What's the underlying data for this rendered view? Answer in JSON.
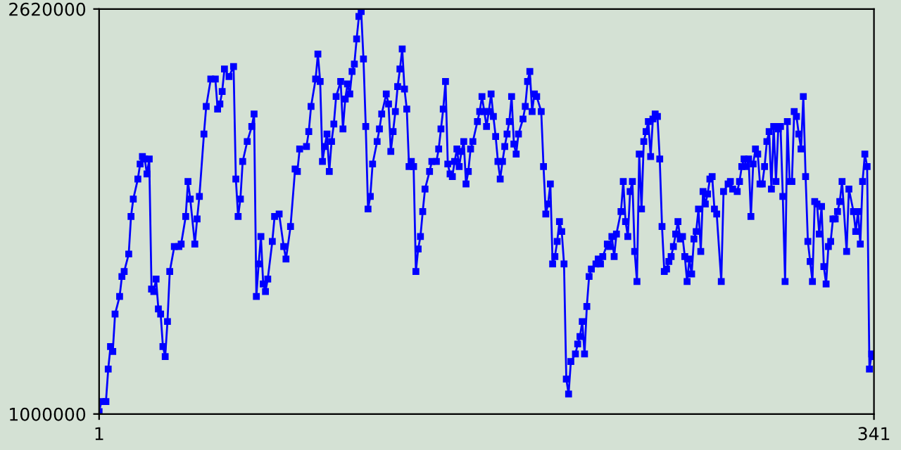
{
  "chart_data": {
    "type": "line",
    "marker": "square",
    "line_style": "solid",
    "grid": false,
    "xlim": [
      1,
      341
    ],
    "xticks": [
      1,
      341
    ],
    "ylim": [
      1000000,
      2620000
    ],
    "yticks": [
      1000000,
      2620000
    ],
    "series": [
      {
        "color": "#0000ff",
        "x": [
          1,
          2,
          4,
          5,
          6,
          7,
          8,
          10,
          11,
          12,
          14,
          15,
          16,
          18,
          19,
          20,
          21,
          22,
          23,
          24,
          25,
          26,
          27,
          28,
          29,
          30,
          31,
          32,
          34,
          36,
          37,
          39,
          40,
          41,
          43,
          44,
          45,
          47,
          48,
          50,
          52,
          53,
          54,
          55,
          56,
          58,
          60,
          61,
          62,
          63,
          64,
          66,
          68,
          69,
          70,
          71,
          72,
          73,
          74,
          75,
          77,
          78,
          80,
          82,
          83,
          85,
          87,
          88,
          89,
          92,
          93,
          94,
          96,
          97,
          98,
          99,
          100,
          101,
          102,
          103,
          104,
          105,
          107,
          108,
          109,
          110,
          111,
          112,
          113,
          114,
          115,
          116,
          117,
          118,
          119,
          120,
          121,
          123,
          124,
          125,
          127,
          128,
          129,
          130,
          131,
          132,
          133,
          134,
          135,
          136,
          137,
          138,
          139,
          140,
          141,
          142,
          143,
          144,
          146,
          147,
          149,
          150,
          151,
          152,
          153,
          154,
          155,
          156,
          157,
          158,
          159,
          160,
          161,
          162,
          163,
          164,
          165,
          167,
          168,
          169,
          170,
          171,
          172,
          173,
          174,
          175,
          176,
          177,
          178,
          179,
          180,
          181,
          182,
          183,
          184,
          185,
          187,
          188,
          189,
          190,
          191,
          192,
          193,
          195,
          196,
          197,
          198,
          199,
          200,
          201,
          202,
          203,
          204,
          205,
          206,
          207,
          208,
          210,
          211,
          212,
          213,
          214,
          215,
          216,
          217,
          219,
          220,
          221,
          222,
          224,
          225,
          226,
          227,
          228,
          230,
          231,
          232,
          233,
          234,
          235,
          236,
          237,
          238,
          239,
          240,
          241,
          242,
          243,
          244,
          245,
          246,
          247,
          248,
          249,
          250,
          251,
          252,
          253,
          254,
          255,
          256,
          257,
          258,
          259,
          260,
          261,
          262,
          263,
          264,
          265,
          266,
          267,
          268,
          269,
          270,
          271,
          272,
          274,
          275,
          277,
          278,
          279,
          281,
          282,
          283,
          284,
          285,
          286,
          287,
          288,
          289,
          290,
          291,
          292,
          293,
          294,
          295,
          296,
          297,
          298,
          299,
          300,
          301,
          302,
          303,
          304,
          305,
          306,
          307,
          308,
          309,
          310,
          311,
          312,
          313,
          314,
          315,
          316,
          317,
          318,
          319,
          320,
          321,
          322,
          323,
          324,
          325,
          326,
          327,
          329,
          330,
          332,
          333,
          334,
          335,
          336,
          337,
          338,
          339,
          340,
          341
        ],
        "values": [
          1010000,
          1050000,
          1050000,
          1180000,
          1270000,
          1250000,
          1400000,
          1470000,
          1550000,
          1570000,
          1640000,
          1790000,
          1860000,
          1940000,
          2000000,
          2030000,
          2020000,
          1960000,
          2020000,
          1500000,
          1490000,
          1540000,
          1420000,
          1400000,
          1270000,
          1230000,
          1370000,
          1570000,
          1670000,
          1670000,
          1680000,
          1790000,
          1930000,
          1860000,
          1680000,
          1780000,
          1870000,
          2120000,
          2230000,
          2340000,
          2340000,
          2220000,
          2240000,
          2290000,
          2380000,
          2350000,
          2390000,
          1940000,
          1790000,
          1860000,
          2010000,
          2090000,
          2150000,
          2200000,
          1470000,
          1600000,
          1710000,
          1520000,
          1490000,
          1540000,
          1690000,
          1790000,
          1800000,
          1670000,
          1620000,
          1750000,
          1980000,
          1970000,
          2060000,
          2070000,
          2130000,
          2230000,
          2340000,
          2440000,
          2330000,
          2010000,
          2070000,
          2120000,
          1970000,
          2090000,
          2160000,
          2270000,
          2330000,
          2140000,
          2260000,
          2320000,
          2280000,
          2370000,
          2400000,
          2500000,
          2590000,
          2610000,
          2420000,
          2150000,
          1820000,
          1870000,
          2000000,
          2090000,
          2140000,
          2200000,
          2280000,
          2240000,
          2050000,
          2130000,
          2210000,
          2310000,
          2380000,
          2460000,
          2300000,
          2220000,
          1990000,
          2010000,
          1990000,
          1570000,
          1660000,
          1710000,
          1810000,
          1900000,
          1970000,
          2010000,
          2010000,
          2060000,
          2140000,
          2220000,
          2330000,
          2000000,
          1960000,
          1950000,
          2010000,
          2060000,
          1990000,
          2050000,
          2090000,
          1920000,
          1970000,
          2060000,
          2090000,
          2170000,
          2210000,
          2270000,
          2210000,
          2150000,
          2210000,
          2280000,
          2190000,
          2110000,
          2010000,
          1940000,
          2010000,
          2070000,
          2120000,
          2170000,
          2270000,
          2080000,
          2040000,
          2120000,
          2180000,
          2230000,
          2330000,
          2370000,
          2210000,
          2280000,
          2270000,
          2210000,
          1990000,
          1800000,
          1840000,
          1920000,
          1600000,
          1630000,
          1690000,
          1770000,
          1730000,
          1600000,
          1140000,
          1080000,
          1210000,
          1240000,
          1280000,
          1310000,
          1370000,
          1240000,
          1430000,
          1550000,
          1580000,
          1600000,
          1620000,
          1600000,
          1630000,
          1680000,
          1670000,
          1710000,
          1630000,
          1720000,
          1810000,
          1930000,
          1770000,
          1710000,
          1890000,
          1930000,
          1650000,
          1530000,
          2040000,
          1820000,
          2090000,
          2130000,
          2170000,
          2030000,
          2180000,
          2200000,
          2190000,
          2020000,
          1750000,
          1570000,
          1580000,
          1610000,
          1630000,
          1670000,
          1720000,
          1770000,
          1700000,
          1710000,
          1630000,
          1530000,
          1620000,
          1560000,
          1700000,
          1730000,
          1820000,
          1650000,
          1890000,
          1840000,
          1880000,
          1940000,
          1950000,
          1820000,
          1800000,
          1530000,
          1890000,
          1920000,
          1930000,
          1900000,
          1890000,
          1930000,
          1990000,
          2020000,
          1990000,
          2020000,
          1790000,
          2000000,
          2060000,
          2040000,
          1920000,
          1920000,
          1990000,
          2090000,
          2130000,
          1900000,
          2150000,
          1930000,
          2140000,
          2150000,
          1870000,
          1530000,
          2170000,
          1930000,
          1930000,
          2210000,
          2190000,
          2120000,
          2060000,
          2270000,
          1950000,
          1690000,
          1610000,
          1530000,
          1850000,
          1840000,
          1720000,
          1830000,
          1590000,
          1520000,
          1670000,
          1690000,
          1780000,
          1780000,
          1810000,
          1850000,
          1930000,
          1650000,
          1900000,
          1810000,
          1730000,
          1810000,
          1680000,
          1930000,
          2040000,
          1990000,
          1180000,
          1240000,
          1230000
        ]
      }
    ]
  }
}
